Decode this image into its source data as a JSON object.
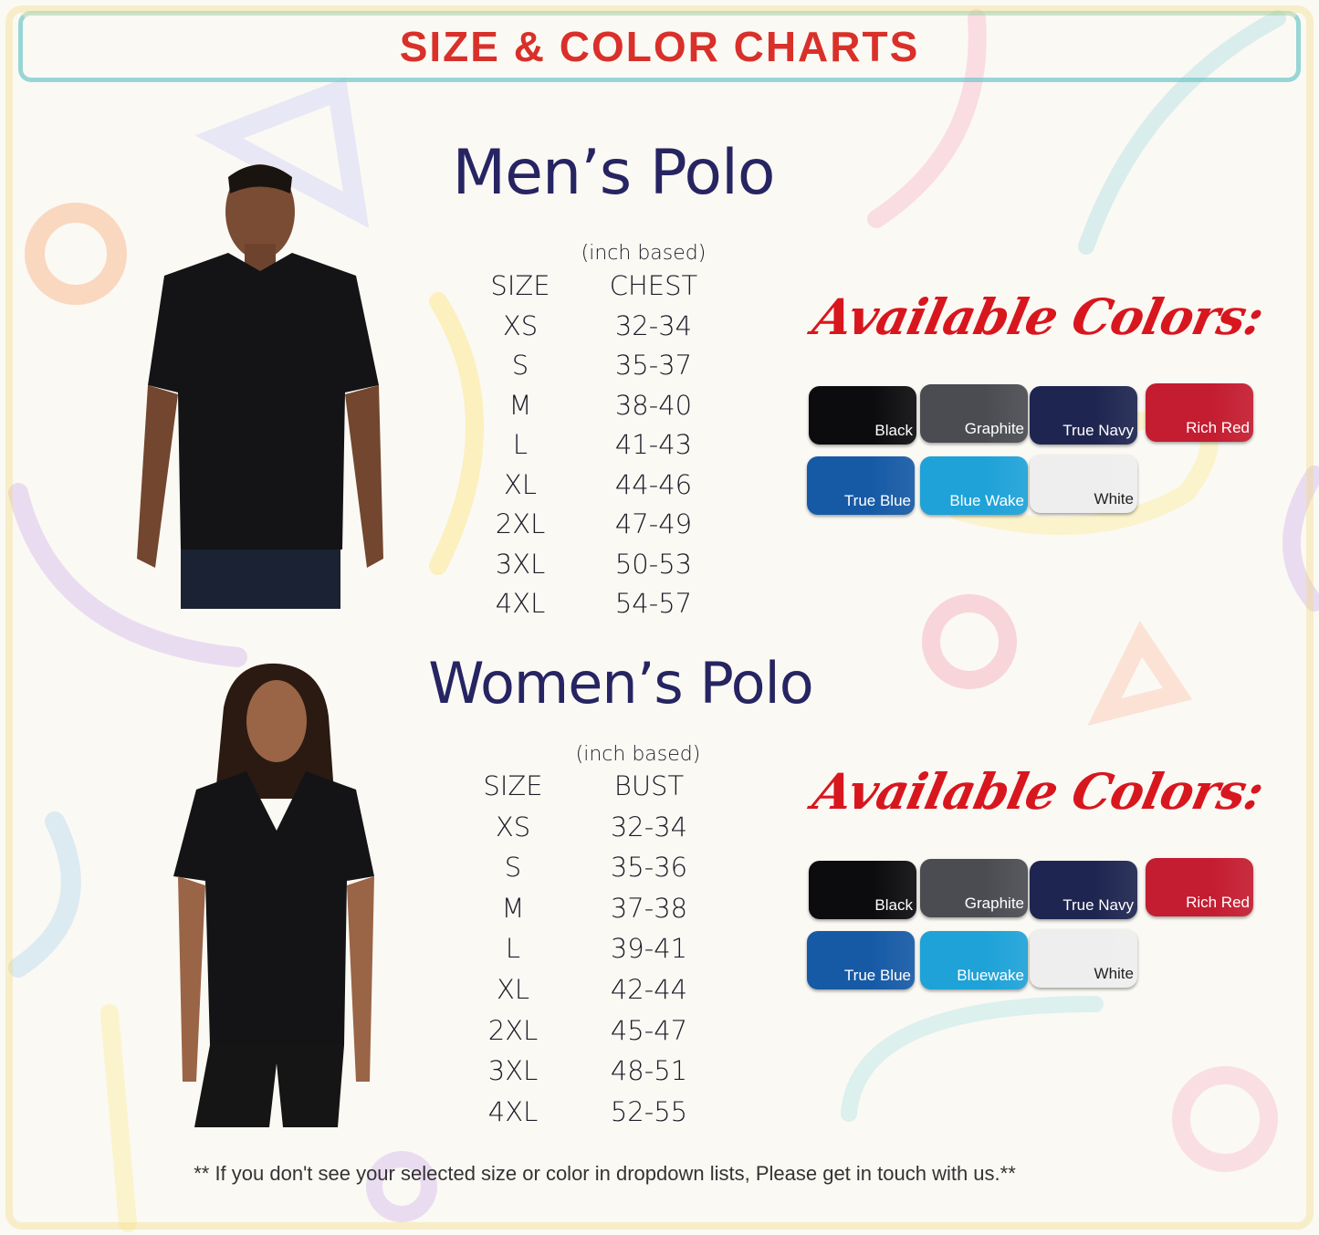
{
  "header": {
    "title": "SIZE & COLOR CHARTS"
  },
  "mens": {
    "title": "Men’s Polo",
    "unit_note": "(inch based)",
    "size_header": "SIZE",
    "measure_header": "CHEST",
    "sizes": [
      "XS",
      "S",
      "M",
      "L",
      "XL",
      "2XL",
      "3XL",
      "4XL"
    ],
    "values": [
      "32-34",
      "35-37",
      "38-40",
      "41-43",
      "44-46",
      "47-49",
      "50-53",
      "54-57"
    ],
    "colors_heading": "Available Colors:",
    "colors": [
      {
        "name": "Black",
        "hex": "#0c0c0e"
      },
      {
        "name": "Graphite",
        "hex": "#4a4c52"
      },
      {
        "name": "True Navy",
        "hex": "#1e2550"
      },
      {
        "name": "Rich Red",
        "hex": "#c41c30"
      },
      {
        "name": "True Blue",
        "hex": "#165aa6"
      },
      {
        "name": "Blue Wake",
        "hex": "#1ea2d8"
      },
      {
        "name": "White",
        "hex": "#eeeeee"
      }
    ]
  },
  "womens": {
    "title": "Women’s Polo",
    "unit_note": "(inch based)",
    "size_header": "SIZE",
    "measure_header": "BUST",
    "sizes": [
      "XS",
      "S",
      "M",
      "L",
      "XL",
      "2XL",
      "3XL",
      "4XL"
    ],
    "values": [
      "32-34",
      "35-36",
      "37-38",
      "39-41",
      "42-44",
      "45-47",
      "48-51",
      "52-55"
    ],
    "colors_heading": "Available Colors:",
    "colors": [
      {
        "name": "Black",
        "hex": "#0c0c0e"
      },
      {
        "name": "Graphite",
        "hex": "#4a4c52"
      },
      {
        "name": "True Navy",
        "hex": "#1e2550"
      },
      {
        "name": "Rich Red",
        "hex": "#c41c30"
      },
      {
        "name": "True Blue",
        "hex": "#165aa6"
      },
      {
        "name": "Bluewake",
        "hex": "#1ea2d8"
      },
      {
        "name": "White",
        "hex": "#eeeeee"
      }
    ]
  },
  "footer": {
    "note": "** If you don't see your selected size or color in dropdown lists, Please get in touch with us.**"
  }
}
